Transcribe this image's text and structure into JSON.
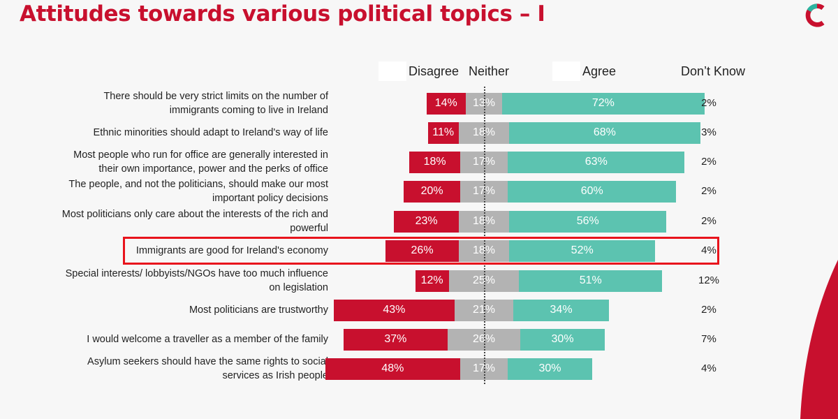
{
  "title": "Attitudes towards various political topics – I",
  "logo": {
    "icon": "brand-c-logo-icon",
    "colors": [
      "#c8102e",
      "#2bb5a0"
    ]
  },
  "colors": {
    "disagree": "#c8102e",
    "neither": "#b3b3b3",
    "agree": "#5cc3b0",
    "highlight": "#e8141c",
    "title": "#c8102e"
  },
  "chart_data": {
    "type": "bar",
    "orientation": "horizontal-diverging-stacked",
    "legend": [
      "Disagree",
      "Neither",
      "Agree",
      "Don’t Know"
    ],
    "categories": [
      "There should be very strict limits on the number of immigrants coming to live in Ireland",
      "Ethnic minorities should adapt to Ireland's way of life",
      "Most people who run for office are generally interested in their own importance, power and the perks of office",
      "The people, and not the politicians, should make our most important policy decisions",
      "Most politicians only care about the interests of the rich and powerful",
      "Immigrants are good for Ireland's economy",
      "Special interests/ lobbyists/NGOs have too much influence on legislation",
      "Most politicians are trustworthy",
      "I would welcome a traveller as a member of the family",
      "Asylum seekers should have the same rights to social services as Irish people"
    ],
    "series": [
      {
        "name": "Disagree",
        "values": [
          14,
          11,
          18,
          20,
          23,
          26,
          12,
          43,
          37,
          48
        ]
      },
      {
        "name": "Neither",
        "values": [
          13,
          18,
          17,
          17,
          18,
          18,
          25,
          21,
          26,
          17
        ]
      },
      {
        "name": "Agree",
        "values": [
          72,
          68,
          63,
          60,
          56,
          52,
          51,
          34,
          30,
          30
        ]
      },
      {
        "name": "Don’t Know",
        "values": [
          2,
          3,
          2,
          2,
          2,
          4,
          12,
          2,
          7,
          4
        ]
      }
    ],
    "highlighted_category": "Immigrants are good for Ireland's economy"
  },
  "rows": [
    {
      "label_lines": [
        "There should be very strict limits on the number of",
        "immigrants coming to live in Ireland"
      ],
      "disagree": "14%",
      "neither": "13%",
      "agree": "72%",
      "dont_know": "2%"
    },
    {
      "label_lines": [
        "Ethnic minorities should adapt to Ireland's way of life"
      ],
      "disagree": "11%",
      "neither": "18%",
      "agree": "68%",
      "dont_know": "3%"
    },
    {
      "label_lines": [
        "Most people who run for office are generally interested in",
        "their own importance, power and the perks of office"
      ],
      "disagree": "18%",
      "neither": "17%",
      "agree": "63%",
      "dont_know": "2%"
    },
    {
      "label_lines": [
        "The people, and not the politicians, should make our most",
        "important policy decisions"
      ],
      "disagree": "20%",
      "neither": "17%",
      "agree": "60%",
      "dont_know": "2%"
    },
    {
      "label_lines": [
        "Most politicians only care about the interests of the rich and",
        "powerful"
      ],
      "disagree": "23%",
      "neither": "18%",
      "agree": "56%",
      "dont_know": "2%"
    },
    {
      "label_lines": [
        "Immigrants are good for Ireland's economy"
      ],
      "disagree": "26%",
      "neither": "18%",
      "agree": "52%",
      "dont_know": "4%"
    },
    {
      "label_lines": [
        "Special interests/ lobbyists/NGOs have too much influence",
        "on legislation"
      ],
      "disagree": "12%",
      "neither": "25%",
      "agree": "51%",
      "dont_know": "12%"
    },
    {
      "label_lines": [
        "Most politicians are trustworthy"
      ],
      "disagree": "43%",
      "neither": "21%",
      "agree": "34%",
      "dont_know": "2%"
    },
    {
      "label_lines": [
        "I would welcome a traveller as a member of the family"
      ],
      "disagree": "37%",
      "neither": "26%",
      "agree": "30%",
      "dont_know": "7%"
    },
    {
      "label_lines": [
        "Asylum seekers should have the same rights to social",
        "services as Irish people"
      ],
      "disagree": "48%",
      "neither": "17%",
      "agree": "30%",
      "dont_know": "4%"
    }
  ]
}
